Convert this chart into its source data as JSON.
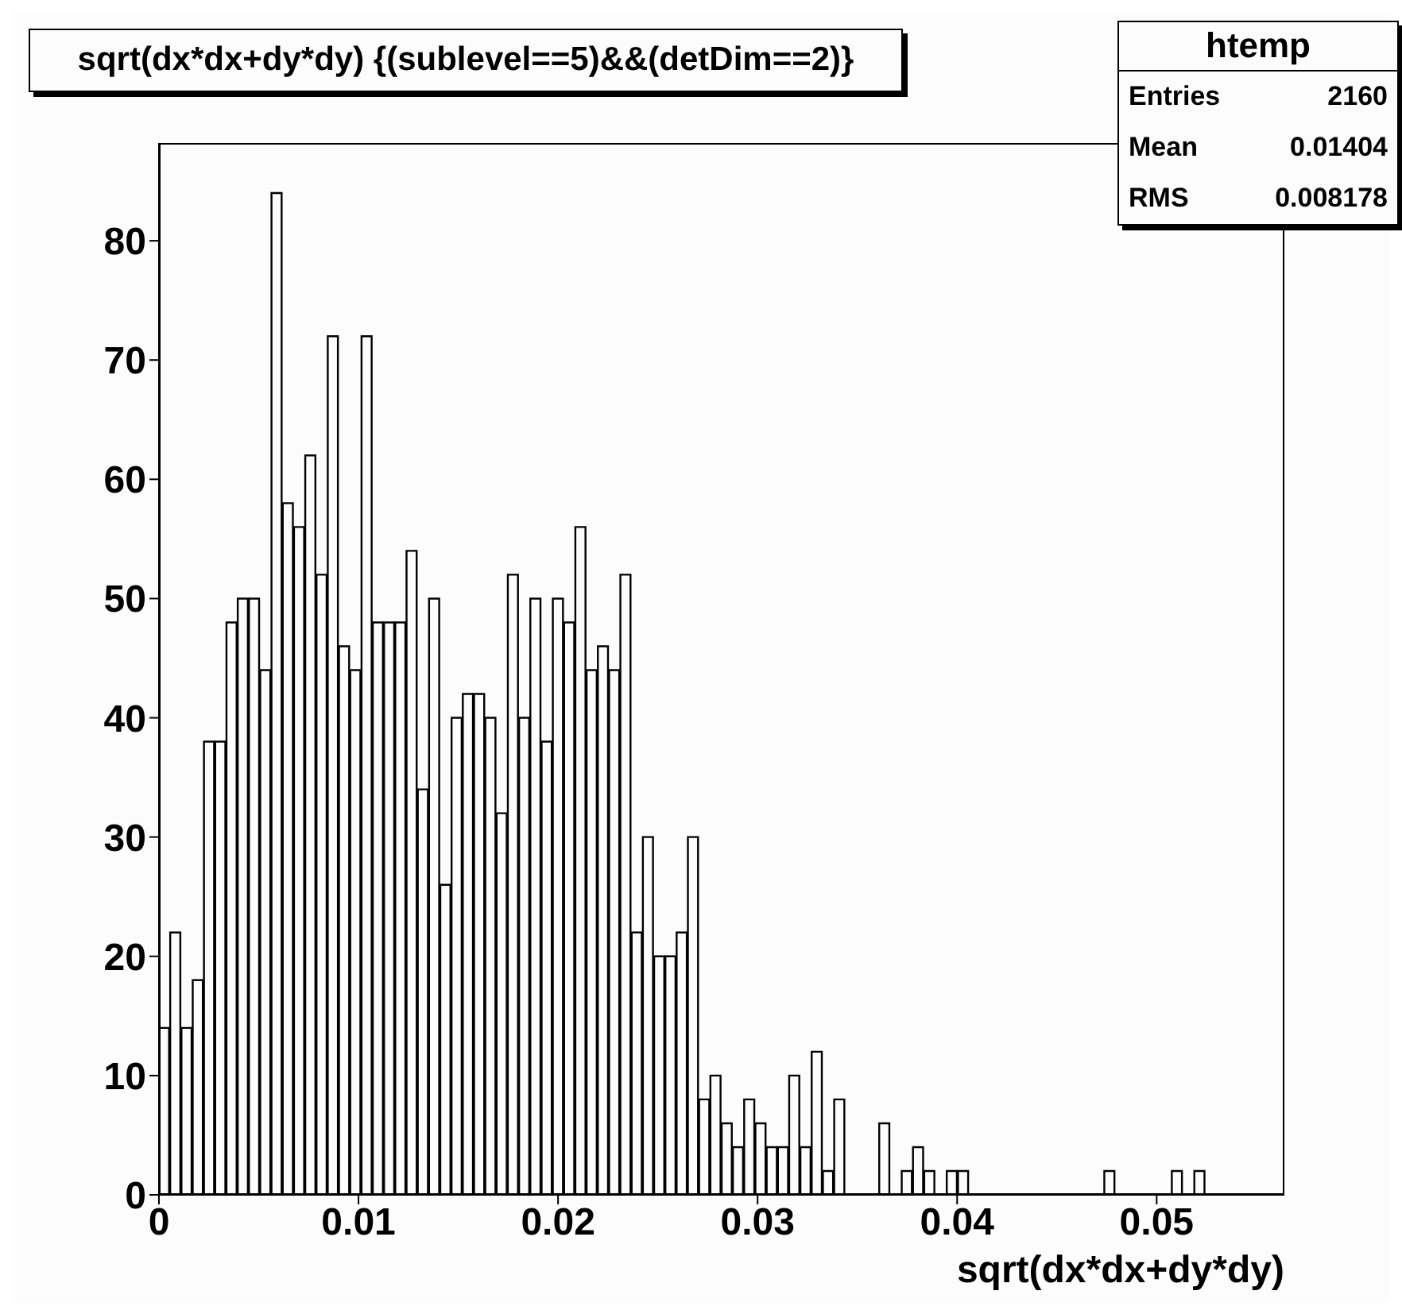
{
  "chart_data": {
    "type": "histogram",
    "title": "sqrt(dx*dx+dy*dy) {(sublevel==5)&&(detDim==2)}",
    "xlabel": "sqrt(dx*dx+dy*dy)",
    "annotations": [
      "htemp",
      "Entries",
      "2160",
      "Mean",
      "0.01404",
      "RMS",
      "0.008178"
    ],
    "bins": [
      0,
      0.000564,
      0.001128,
      0.001692,
      0.002256,
      0.00282,
      0.003384,
      0.003948,
      0.004512,
      0.005076,
      0.00564,
      0.006204,
      0.006768,
      0.007332,
      0.007896,
      0.00846,
      0.009024,
      0.009588,
      0.010152,
      0.010716,
      0.01128,
      0.011844,
      0.012408,
      0.012972,
      0.013536,
      0.0141,
      0.014664,
      0.015228,
      0.015792,
      0.016356,
      0.01692,
      0.017484,
      0.018048,
      0.018612,
      0.019176,
      0.01974,
      0.020304,
      0.020868,
      0.021432,
      0.021996,
      0.02256,
      0.023124,
      0.023688,
      0.024252,
      0.024816,
      0.02538,
      0.025944,
      0.026508,
      0.027072,
      0.027636,
      0.0282,
      0.028764,
      0.029328,
      0.029892,
      0.030456,
      0.03102,
      0.031584,
      0.032148,
      0.032712,
      0.033276,
      0.03384,
      0.034404,
      0.034968,
      0.035532,
      0.036096,
      0.03666,
      0.037224,
      0.037788,
      0.038352,
      0.038916,
      0.03948,
      0.040044,
      0.040608,
      0.041172,
      0.041736,
      0.0423,
      0.042864,
      0.043428,
      0.043992,
      0.044556,
      0.04512,
      0.045684,
      0.046248,
      0.046812,
      0.047376,
      0.04794,
      0.048504,
      0.049068,
      0.049632,
      0.050196,
      0.05076,
      0.051324,
      0.051888,
      0.052452,
      0.053016,
      0.05358,
      0.054144,
      0.054708,
      0.055272,
      0.055836,
      0.0564
    ],
    "values": [
      14,
      22,
      14,
      18,
      38,
      38,
      48,
      50,
      50,
      44,
      84,
      58,
      56,
      62,
      52,
      72,
      46,
      44,
      72,
      48,
      48,
      48,
      54,
      34,
      50,
      26,
      40,
      42,
      42,
      40,
      32,
      52,
      40,
      50,
      38,
      50,
      48,
      56,
      44,
      46,
      44,
      52,
      22,
      30,
      20,
      20,
      22,
      30,
      8,
      10,
      6,
      4,
      8,
      6,
      4,
      4,
      10,
      4,
      12,
      2,
      8,
      0,
      0,
      0,
      6,
      0,
      2,
      4,
      2,
      0,
      2,
      2,
      0,
      0,
      0,
      0,
      0,
      0,
      0,
      0,
      0,
      0,
      0,
      0,
      2,
      0,
      0,
      0,
      0,
      0,
      2,
      0,
      2,
      0,
      0,
      0,
      0,
      0,
      0,
      0
    ],
    "color": "#000000",
    "xlim": [
      0,
      0.0564
    ],
    "xticks": [
      0,
      0.01,
      0.02,
      0.03,
      0.04,
      0.05
    ],
    "ylim": [
      0,
      88.2
    ],
    "yticks": [
      0,
      10,
      20,
      30,
      40,
      50,
      60,
      70,
      80
    ],
    "grid": false
  }
}
